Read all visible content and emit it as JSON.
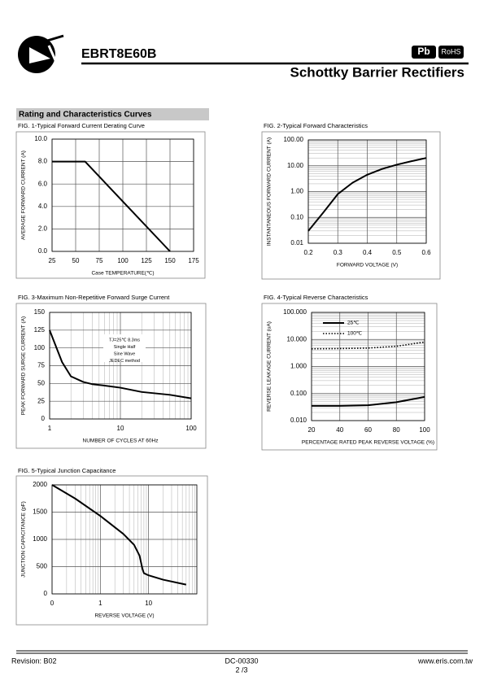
{
  "header": {
    "part": "EBRT8E60B",
    "subtitle": "Schottky Barrier Rectifiers",
    "badges": [
      "Pb",
      "RoHS"
    ],
    "section": "Rating and Characteristics Curves"
  },
  "footer": {
    "revision": "Revision: B02",
    "doc": "DC-00330",
    "page": "2 /3",
    "url": "www.eris.com.tw"
  },
  "chart_data": [
    {
      "type": "line",
      "title": "FIG. 1-Typical Forward Current Derating Curve",
      "xlabel": "Case TEMPERATURE(℃)",
      "ylabel": "AVERAGE FORWARD CURRENT (A)",
      "x": [
        25,
        60,
        150
      ],
      "series": [
        {
          "color": "#000000",
          "values": [
            8,
            8,
            0
          ]
        }
      ],
      "xlim": [
        25,
        175
      ],
      "xticks": [
        25,
        50,
        75,
        100,
        125,
        150,
        175
      ],
      "ylim": [
        0,
        10
      ],
      "yticks": [
        {
          "value": 0,
          "label": "0.0"
        },
        {
          "value": 2,
          "label": "2.0"
        },
        {
          "value": 4,
          "label": "4.0"
        },
        {
          "value": 6,
          "label": "6.0"
        },
        {
          "value": 8,
          "label": "8.0"
        },
        {
          "value": 10,
          "label": "10.0"
        }
      ],
      "grid": true
    },
    {
      "type": "line",
      "title": "FIG. 2-Typical Forward Characteristics",
      "xlabel": "FORWARD VOLTAGE (V)",
      "ylabel": "INSTANTANEOUS FORWARD CURRENT (A)",
      "x": [
        0.2,
        0.25,
        0.3,
        0.35,
        0.4,
        0.45,
        0.5,
        0.55,
        0.6
      ],
      "series": [
        {
          "color": "#000000",
          "values": [
            0.03,
            0.15,
            0.8,
            2.2,
            4.5,
            7.5,
            11,
            15,
            20
          ]
        }
      ],
      "xlim": [
        0.2,
        0.6
      ],
      "xticks": [
        0.2,
        0.3,
        0.4,
        0.5,
        0.6
      ],
      "yscale": "log",
      "ylim": [
        0.01,
        100
      ],
      "yticks": [
        {
          "value": 0.01,
          "label": "0.01"
        },
        {
          "value": 0.1,
          "label": "0.10"
        },
        {
          "value": 1,
          "label": "1.00"
        },
        {
          "value": 10,
          "label": "10.00"
        },
        {
          "value": 100,
          "label": "100.00"
        }
      ],
      "grid": true
    },
    {
      "type": "line",
      "title": "FIG. 3-Maximum Non-Repetitive Forward Surge Current",
      "xlabel": "NUMBER OF CYCLES AT 60Hz",
      "ylabel": "PEAK FORWARD SURGE CURRENT (A)",
      "annotation": [
        "TJ=25℃ 8.3ms",
        "Single Half",
        "Sine Wave",
        "JEDEC method"
      ],
      "x": [
        1,
        1.5,
        2,
        3,
        4,
        6,
        10,
        20,
        50,
        100
      ],
      "series": [
        {
          "color": "#000000",
          "values": [
            125,
            80,
            60,
            52,
            49,
            47,
            44,
            38,
            34,
            29
          ]
        }
      ],
      "xscale": "log",
      "xlim": [
        1,
        100
      ],
      "xticks": [
        1,
        10,
        100
      ],
      "ylim": [
        0,
        150
      ],
      "yticks": [
        0,
        25,
        50,
        75,
        100,
        125,
        150
      ],
      "grid": true
    },
    {
      "type": "line",
      "title": "FIG. 4-Typical Reverse Characteristics",
      "xlabel": "PERCENTAGE RATED PEAK REVERSE VOLTAGE (%)",
      "ylabel": "REVERSE LEAKAGE CURRENT (uA)",
      "x": [
        20,
        40,
        60,
        80,
        100
      ],
      "series": [
        {
          "name": "25℃",
          "color": "#000000",
          "style": "solid",
          "values": [
            0.035,
            0.035,
            0.037,
            0.048,
            0.075
          ]
        },
        {
          "name": "100℃",
          "color": "#000000",
          "style": "dotted",
          "values": [
            4.5,
            4.6,
            4.8,
            5.6,
            8
          ]
        }
      ],
      "legend": "upper left",
      "xlim": [
        20,
        100
      ],
      "xticks": [
        20,
        40,
        60,
        80,
        100
      ],
      "yscale": "log",
      "ylim": [
        0.01,
        100
      ],
      "yticks": [
        {
          "value": 0.01,
          "label": "0.010"
        },
        {
          "value": 0.1,
          "label": "0.100"
        },
        {
          "value": 1,
          "label": "1.000"
        },
        {
          "value": 10,
          "label": "10.000"
        },
        {
          "value": 100,
          "label": "100.000"
        }
      ],
      "grid": true
    },
    {
      "type": "line",
      "title": "FIG. 5-Typical Junction Capacitance",
      "xlabel": "REVERSE VOLTAGE (V)",
      "ylabel": "JUNCTION CAPACITANCE (pF)",
      "x": [
        0.1,
        0.3,
        1,
        3,
        5,
        6.5,
        7.5,
        8,
        10,
        20,
        60
      ],
      "series": [
        {
          "color": "#000000",
          "values": [
            2000,
            1750,
            1430,
            1100,
            900,
            700,
            450,
            380,
            340,
            260,
            170
          ]
        }
      ],
      "xscale": "log",
      "xlim": [
        0.1,
        100
      ],
      "xticks": [
        {
          "value": 0.1,
          "label": "0"
        },
        1,
        10
      ],
      "ylim": [
        0,
        2000
      ],
      "yticks": [
        0,
        500,
        1000,
        1500,
        2000
      ],
      "grid": true
    }
  ]
}
